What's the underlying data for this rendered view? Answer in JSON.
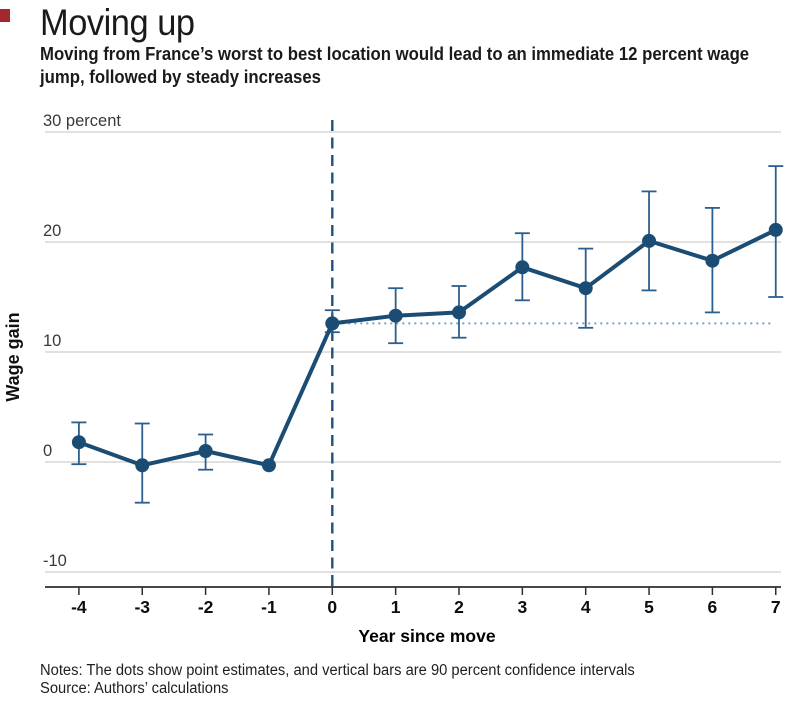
{
  "branding": {
    "accent_red": "#a3282d"
  },
  "header": {
    "title": "Moving up",
    "subtitle_lines": [
      "Moving from France’s worst to best location would lead to an immediate 12 percent wage",
      "jump, followed by steady increases"
    ]
  },
  "footer": {
    "notes": "Notes: The dots show point estimates, and vertical bars are 90 percent confidence intervals",
    "source": "Source: Authors’ calculations"
  },
  "chart_data": {
    "type": "line",
    "title": "Moving up",
    "subtitle": "Moving from France’s worst to best location would lead to an immediate 12 percent wage jump, followed by steady increases",
    "xlabel": "Year since move",
    "ylabel": "Wage gain",
    "x": [
      -4,
      -3,
      -2,
      -1,
      0,
      1,
      2,
      3,
      4,
      5,
      6,
      7
    ],
    "values": [
      1.8,
      -0.3,
      1.0,
      -0.3,
      12.6,
      13.3,
      13.6,
      17.7,
      15.8,
      20.1,
      18.3,
      21.1
    ],
    "ci_low": [
      -0.2,
      -3.7,
      -0.7,
      null,
      11.8,
      10.8,
      11.3,
      14.7,
      12.2,
      15.6,
      13.6,
      15.0
    ],
    "ci_high": [
      3.6,
      3.5,
      2.5,
      null,
      13.8,
      15.8,
      16.0,
      20.8,
      19.4,
      24.6,
      23.1,
      26.9
    ],
    "ci_level": "90 percent confidence intervals",
    "reference_year_without_ci": -1,
    "yticks": [
      30,
      20,
      10,
      0,
      -10
    ],
    "ytick_labels": [
      "30 percent",
      "20",
      "10",
      "0",
      "-10"
    ],
    "ylim": [
      -12,
      31
    ],
    "xlim": [
      -4.5,
      7.1
    ],
    "event_line_x": 0,
    "dotted_reference_value": 12.6,
    "grid": "horizontal gridlines only, no legend",
    "legend": "none",
    "colors": {
      "line": "#1b4c74",
      "dots": "#1b4c74",
      "error_bars": "#2d5f8e",
      "event_dashed_line": "#1f5280",
      "reference_dotted_line": "#7e9fbd",
      "gridlines": "#e1e1e1",
      "axis": "#2e2e2e"
    }
  }
}
